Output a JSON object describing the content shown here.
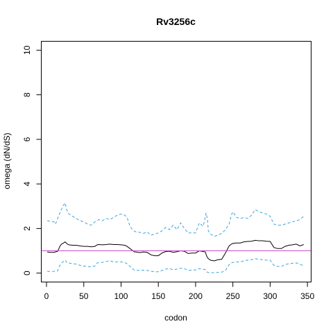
{
  "chart_data": {
    "type": "line",
    "title": "Rv3256c",
    "xlabel": "codon",
    "ylabel": "omega (dN/dS)",
    "xlim": [
      -7,
      355
    ],
    "ylim": [
      -0.4,
      10.4
    ],
    "xticks": [
      0,
      50,
      100,
      150,
      200,
      250,
      300,
      350
    ],
    "yticks": [
      0,
      2,
      4,
      6,
      8,
      10
    ],
    "grid": false,
    "reference_line": {
      "y": 1,
      "color": "#c64fc6"
    },
    "series": [
      {
        "style": "solid",
        "color": "#000000",
        "x": [
          1,
          5,
          10,
          15,
          18,
          20,
          22,
          25,
          28,
          30,
          35,
          40,
          45,
          50,
          55,
          60,
          65,
          68,
          70,
          75,
          80,
          85,
          90,
          95,
          100,
          105,
          108,
          112,
          116,
          118,
          120,
          125,
          130,
          135,
          140,
          145,
          150,
          155,
          160,
          165,
          170,
          175,
          180,
          185,
          190,
          195,
          200,
          205,
          210,
          213,
          215,
          217,
          220,
          225,
          230,
          235,
          240,
          245,
          248,
          250,
          255,
          260,
          265,
          270,
          275,
          280,
          285,
          290,
          295,
          300,
          305,
          310,
          315,
          320,
          325,
          330,
          335,
          340,
          345
        ],
        "y": [
          0.95,
          0.93,
          0.93,
          0.98,
          1.2,
          1.3,
          1.33,
          1.4,
          1.3,
          1.27,
          1.25,
          1.25,
          1.22,
          1.2,
          1.2,
          1.18,
          1.2,
          1.27,
          1.28,
          1.27,
          1.28,
          1.3,
          1.28,
          1.28,
          1.27,
          1.25,
          1.2,
          1.1,
          1.0,
          0.95,
          0.95,
          0.92,
          0.95,
          0.93,
          0.82,
          0.78,
          0.78,
          0.9,
          0.97,
          0.98,
          0.93,
          0.96,
          1.0,
          0.98,
          0.88,
          0.9,
          0.9,
          1.0,
          0.97,
          0.95,
          0.75,
          0.65,
          0.58,
          0.55,
          0.6,
          0.62,
          0.9,
          1.22,
          1.3,
          1.33,
          1.35,
          1.35,
          1.4,
          1.42,
          1.43,
          1.47,
          1.45,
          1.45,
          1.43,
          1.42,
          1.15,
          1.1,
          1.1,
          1.2,
          1.25,
          1.27,
          1.3,
          1.22,
          1.28
        ]
      },
      {
        "style": "dashed",
        "color": "#3ba3dc",
        "x": [
          1,
          5,
          10,
          12,
          15,
          18,
          20,
          22,
          24,
          25,
          27,
          30,
          35,
          40,
          45,
          50,
          55,
          60,
          65,
          70,
          75,
          80,
          85,
          90,
          95,
          100,
          105,
          108,
          112,
          116,
          118,
          120,
          125,
          130,
          135,
          140,
          145,
          150,
          155,
          160,
          165,
          170,
          175,
          180,
          185,
          190,
          195,
          200,
          205,
          210,
          212,
          214,
          216,
          217,
          220,
          225,
          230,
          235,
          240,
          245,
          248,
          250,
          255,
          260,
          265,
          270,
          275,
          280,
          285,
          290,
          295,
          300,
          305,
          310,
          315,
          320,
          325,
          330,
          335,
          340,
          345
        ],
        "y": [
          2.35,
          2.32,
          2.3,
          2.2,
          2.45,
          2.7,
          2.85,
          3.0,
          3.1,
          3.15,
          2.85,
          2.65,
          2.55,
          2.45,
          2.35,
          2.3,
          2.2,
          2.15,
          2.3,
          2.4,
          2.35,
          2.45,
          2.4,
          2.5,
          2.6,
          2.65,
          2.6,
          2.5,
          2.1,
          1.92,
          1.88,
          1.85,
          1.83,
          1.78,
          1.85,
          1.7,
          1.75,
          1.8,
          1.9,
          2.05,
          1.95,
          2.15,
          1.95,
          2.25,
          2.0,
          1.8,
          1.8,
          1.8,
          2.25,
          2.1,
          2.35,
          2.7,
          2.4,
          1.9,
          1.75,
          1.65,
          1.7,
          1.78,
          1.95,
          2.2,
          2.6,
          2.75,
          2.5,
          2.45,
          2.5,
          2.45,
          2.6,
          2.85,
          2.75,
          2.7,
          2.65,
          2.55,
          2.2,
          2.15,
          2.15,
          2.2,
          2.25,
          2.3,
          2.35,
          2.4,
          2.55
        ]
      },
      {
        "style": "dashed",
        "color": "#3ba3dc",
        "x": [
          1,
          5,
          10,
          15,
          18,
          20,
          22,
          25,
          28,
          30,
          35,
          40,
          45,
          50,
          55,
          60,
          65,
          68,
          70,
          75,
          80,
          85,
          90,
          95,
          100,
          105,
          108,
          112,
          116,
          118,
          120,
          125,
          130,
          135,
          140,
          145,
          150,
          155,
          160,
          165,
          170,
          175,
          180,
          185,
          190,
          195,
          200,
          205,
          210,
          213,
          215,
          217,
          220,
          225,
          230,
          235,
          240,
          245,
          248,
          250,
          255,
          260,
          265,
          270,
          275,
          280,
          285,
          290,
          295,
          300,
          305,
          310,
          315,
          320,
          325,
          330,
          335,
          340,
          345
        ],
        "y": [
          0.08,
          0.07,
          0.08,
          0.1,
          0.35,
          0.45,
          0.5,
          0.58,
          0.45,
          0.45,
          0.42,
          0.4,
          0.35,
          0.32,
          0.3,
          0.28,
          0.32,
          0.45,
          0.47,
          0.48,
          0.52,
          0.55,
          0.5,
          0.5,
          0.5,
          0.48,
          0.42,
          0.3,
          0.18,
          0.13,
          0.12,
          0.12,
          0.13,
          0.12,
          0.08,
          0.06,
          0.06,
          0.12,
          0.18,
          0.2,
          0.15,
          0.18,
          0.22,
          0.2,
          0.12,
          0.13,
          0.14,
          0.2,
          0.18,
          0.15,
          0.05,
          0.03,
          0.02,
          0.02,
          0.03,
          0.04,
          0.12,
          0.38,
          0.46,
          0.48,
          0.5,
          0.5,
          0.55,
          0.58,
          0.6,
          0.65,
          0.62,
          0.6,
          0.58,
          0.58,
          0.35,
          0.3,
          0.3,
          0.38,
          0.42,
          0.44,
          0.46,
          0.4,
          0.32
        ]
      }
    ]
  }
}
